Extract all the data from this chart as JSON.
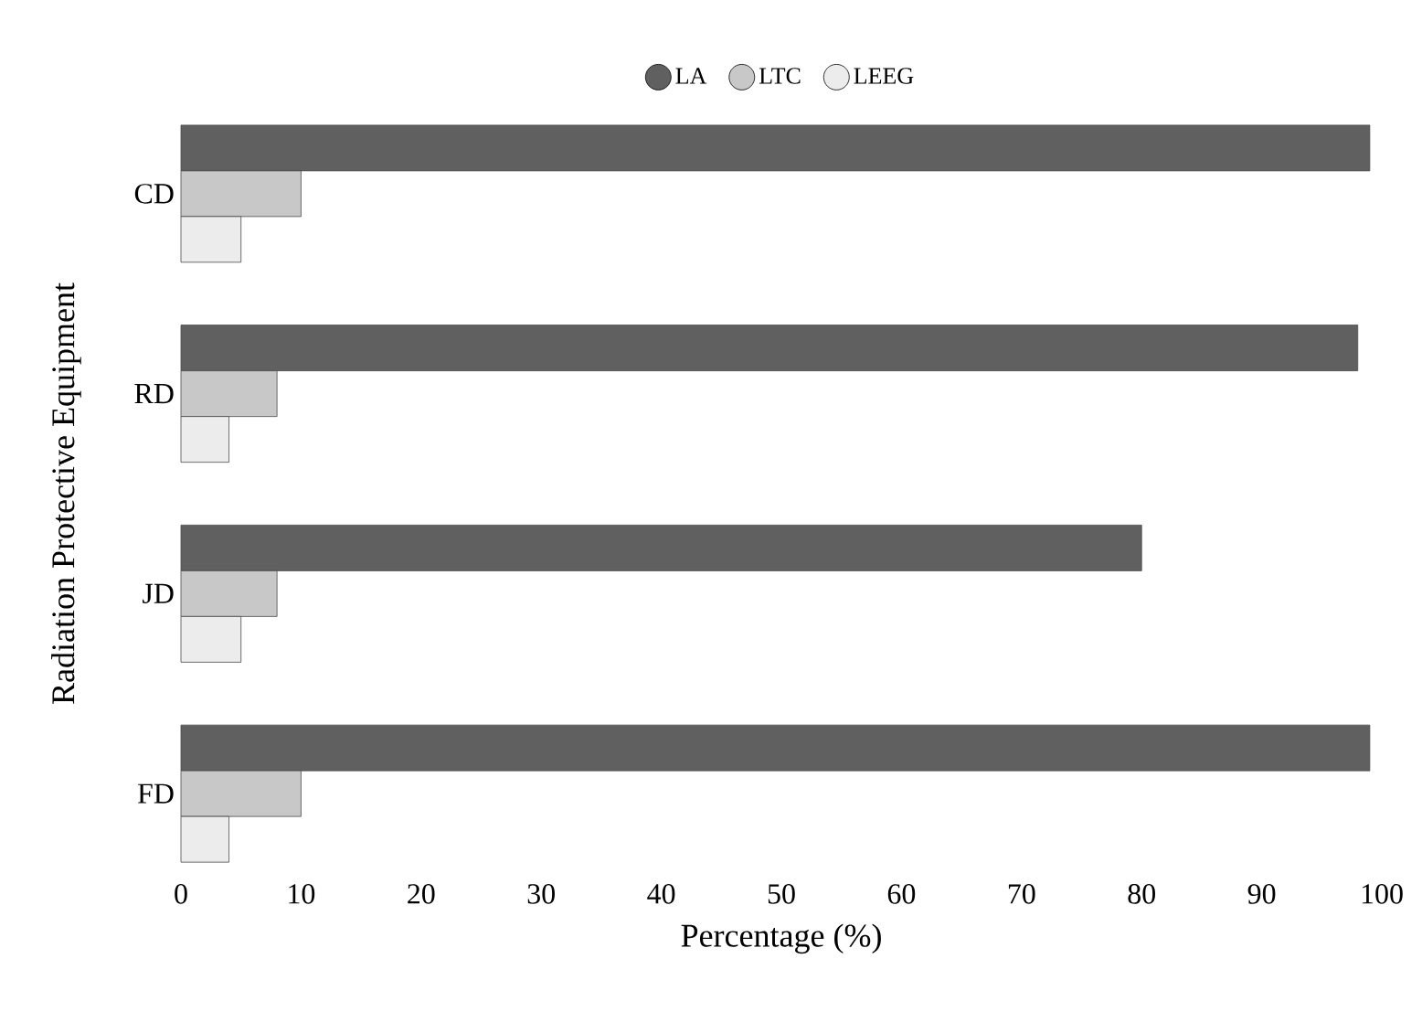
{
  "chart_data": {
    "type": "bar",
    "orientation": "horizontal",
    "xlabel": "Percentage (%)",
    "ylabel": "Radiation Protective Equipment",
    "categories": [
      "CD",
      "RD",
      "JD",
      "FD"
    ],
    "series": [
      {
        "name": "LA",
        "color": "#606060",
        "values": [
          99,
          98,
          80,
          99
        ]
      },
      {
        "name": "LTC",
        "color": "#c8c8c8",
        "values": [
          10,
          8,
          8,
          10
        ]
      },
      {
        "name": "LEEG",
        "color": "#ececec",
        "values": [
          5,
          4,
          5,
          4
        ]
      }
    ],
    "xlim": [
      0,
      100
    ],
    "xticks": [
      0,
      10,
      20,
      30,
      40,
      50,
      60,
      70,
      80,
      90,
      100
    ],
    "legend": "top"
  }
}
